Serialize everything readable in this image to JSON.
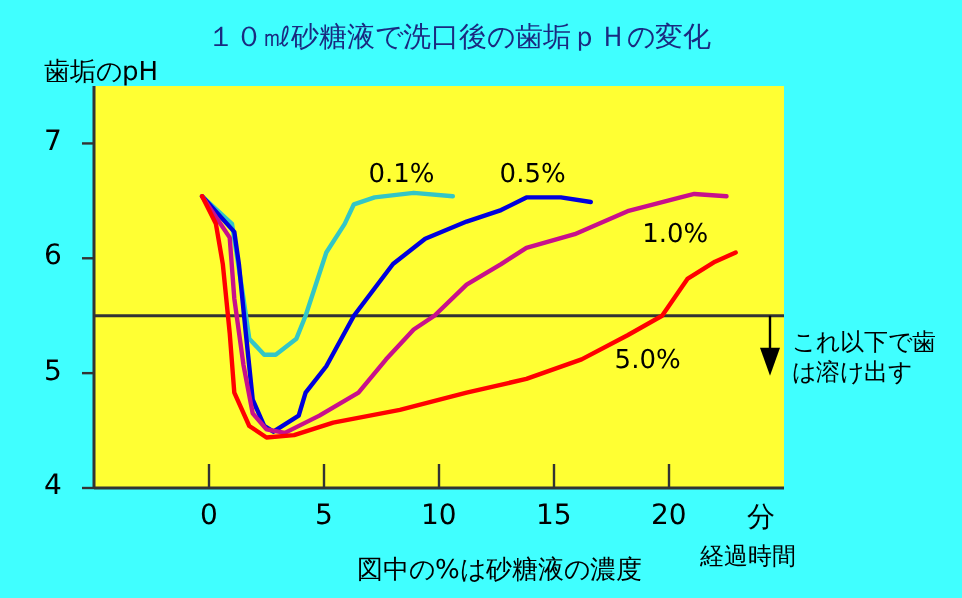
{
  "chart_data": {
    "type": "line",
    "title": "１０㎖砂糖液で洗口後の歯垢ｐＨの変化",
    "ylabel": "歯垢のpH",
    "xlabel": "経過時間",
    "annotations": [
      "図中の%は砂糖液の濃度"
    ],
    "xlim": [
      -5,
      25
    ],
    "ylim": [
      4,
      7.5
    ],
    "xticks": [
      0,
      5,
      10,
      15,
      20,
      {
        "value": 24,
        "label": "分"
      }
    ],
    "yticks": [
      4,
      5,
      6,
      7
    ],
    "grid": false,
    "legend": false,
    "marker": "none",
    "line_style": "solid",
    "ref_lines": [
      {
        "axis": "y",
        "value": 5.5,
        "label": "これ以下で歯は溶け出す",
        "color": "#333333"
      }
    ],
    "series": [
      {
        "name": "0.1%",
        "color": "#33c6c6",
        "x": [
          -0.3,
          1.0,
          1.5,
          1.75,
          2.4,
          2.9,
          3.8,
          4.2,
          5.1,
          5.9,
          6.3,
          7.2,
          8.9,
          10.6
        ],
        "values": [
          6.54,
          6.3,
          5.65,
          5.3,
          5.16,
          5.16,
          5.3,
          5.5,
          6.05,
          6.3,
          6.47,
          6.53,
          6.57,
          6.54
        ]
      },
      {
        "name": "0.5%",
        "color": "#0000dd",
        "x": [
          -0.3,
          1.1,
          1.3,
          1.6,
          1.9,
          2.4,
          2.8,
          3.9,
          4.2,
          5.1,
          6.3,
          8.0,
          9.4,
          11.2,
          12.7,
          13.8,
          15.3,
          16.6
        ],
        "values": [
          6.54,
          6.23,
          5.95,
          5.35,
          4.77,
          4.54,
          4.49,
          4.63,
          4.83,
          5.06,
          5.5,
          5.95,
          6.17,
          6.32,
          6.42,
          6.53,
          6.53,
          6.49
        ]
      },
      {
        "name": "1.0%",
        "color": "#c8108c",
        "x": [
          -0.3,
          0.9,
          1.1,
          1.5,
          1.9,
          2.5,
          3.3,
          4.8,
          6.5,
          7.7,
          8.9,
          9.8,
          11.2,
          12.7,
          13.8,
          15.9,
          18.2,
          20.5,
          21.1,
          22.5
        ],
        "values": [
          6.54,
          6.18,
          5.65,
          5.07,
          4.65,
          4.51,
          4.48,
          4.63,
          4.83,
          5.12,
          5.38,
          5.5,
          5.77,
          5.95,
          6.09,
          6.21,
          6.41,
          6.53,
          6.56,
          6.54
        ]
      },
      {
        "name": "5.0%",
        "color": "#ff0000",
        "x": [
          -0.3,
          0.3,
          0.6,
          0.9,
          1.1,
          1.75,
          2.5,
          3.7,
          5.4,
          8.3,
          11.2,
          13.8,
          16.2,
          18.2,
          19.7,
          20.8,
          22.0,
          22.9
        ],
        "values": [
          6.54,
          6.3,
          5.95,
          5.35,
          4.83,
          4.54,
          4.44,
          4.46,
          4.57,
          4.68,
          4.83,
          4.95,
          5.12,
          5.33,
          5.5,
          5.82,
          5.97,
          6.05
        ]
      }
    ]
  }
}
